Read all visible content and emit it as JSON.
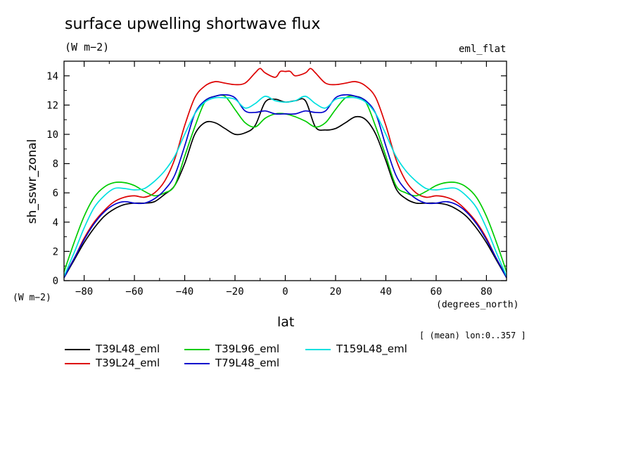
{
  "chart_data": {
    "type": "line",
    "title": "surface upwelling shortwave flux",
    "units": "(W m−2)",
    "subtitle": "eml_flat",
    "xlabel": "lat",
    "ylabel": "sh_sswr_zonal",
    "x_units": "(degrees_north)",
    "y_units": "(W m−2)",
    "annotation": "[ (mean) lon:0..357 ]",
    "xlim": [
      -88,
      88
    ],
    "ylim": [
      0,
      15
    ],
    "x_ticks": [
      -80,
      -60,
      -40,
      -20,
      0,
      20,
      40,
      60,
      80
    ],
    "x_tick_labels": [
      "−80",
      "−60",
      "−40",
      "−20",
      "0",
      "20",
      "40",
      "60",
      "80"
    ],
    "y_ticks": [
      0,
      2,
      4,
      6,
      8,
      10,
      12,
      14
    ],
    "y_tick_labels": [
      "0",
      "2",
      "4",
      "6",
      "8",
      "10",
      "12",
      "14"
    ],
    "grid": false,
    "legend_position": "bottom",
    "series": [
      {
        "name": "T39L48_eml",
        "color": "#000000",
        "x": [
          -88,
          -84,
          -80,
          -76,
          -72,
          -68,
          -64,
          -60,
          -56,
          -52,
          -48,
          -44,
          -40,
          -36,
          -32,
          -28,
          -24,
          -20,
          -16,
          -12,
          -8,
          -4,
          0,
          4,
          8,
          12,
          16,
          20,
          24,
          28,
          32,
          36,
          40,
          44,
          48,
          52,
          56,
          60,
          64,
          68,
          72,
          76,
          80,
          84,
          88
        ],
        "y": [
          0.2,
          1.4,
          2.6,
          3.6,
          4.4,
          4.9,
          5.2,
          5.3,
          5.3,
          5.4,
          5.9,
          6.5,
          8.0,
          10.0,
          10.8,
          10.8,
          10.4,
          10.0,
          10.1,
          10.6,
          12.2,
          12.4,
          12.2,
          12.3,
          12.3,
          10.5,
          10.3,
          10.4,
          10.8,
          11.2,
          11.0,
          10.0,
          8.2,
          6.3,
          5.6,
          5.3,
          5.3,
          5.3,
          5.2,
          4.9,
          4.4,
          3.6,
          2.6,
          1.4,
          0.2
        ]
      },
      {
        "name": "T39L24_eml",
        "color": "#dd0000",
        "x": [
          -88,
          -84,
          -80,
          -76,
          -72,
          -68,
          -64,
          -60,
          -56,
          -52,
          -48,
          -44,
          -40,
          -36,
          -32,
          -28,
          -24,
          -20,
          -16,
          -12,
          -10,
          -8,
          -4,
          -2,
          0,
          2,
          4,
          8,
          10,
          12,
          16,
          20,
          24,
          28,
          32,
          36,
          40,
          44,
          48,
          52,
          56,
          60,
          64,
          68,
          72,
          76,
          80,
          84,
          88
        ],
        "y": [
          0.3,
          1.5,
          2.9,
          4.0,
          4.8,
          5.4,
          5.7,
          5.8,
          5.7,
          6.0,
          6.8,
          8.3,
          10.6,
          12.5,
          13.3,
          13.6,
          13.5,
          13.4,
          13.5,
          14.2,
          14.5,
          14.2,
          13.9,
          14.3,
          14.3,
          14.3,
          14.0,
          14.2,
          14.5,
          14.2,
          13.5,
          13.4,
          13.5,
          13.6,
          13.3,
          12.5,
          10.6,
          8.3,
          6.8,
          6.0,
          5.7,
          5.8,
          5.7,
          5.4,
          4.8,
          4.0,
          2.9,
          1.5,
          0.3
        ]
      },
      {
        "name": "T39L96_eml",
        "color": "#00cc00",
        "x": [
          -88,
          -84,
          -80,
          -76,
          -72,
          -68,
          -64,
          -60,
          -56,
          -52,
          -48,
          -44,
          -40,
          -36,
          -32,
          -28,
          -24,
          -20,
          -16,
          -12,
          -8,
          -4,
          0,
          4,
          8,
          12,
          16,
          20,
          24,
          28,
          32,
          36,
          40,
          44,
          48,
          52,
          56,
          60,
          64,
          68,
          72,
          76,
          80,
          84,
          88
        ],
        "y": [
          0.6,
          2.6,
          4.4,
          5.7,
          6.4,
          6.7,
          6.7,
          6.5,
          6.1,
          5.8,
          6.0,
          6.5,
          8.5,
          10.5,
          12.2,
          12.6,
          12.6,
          11.7,
          10.8,
          10.5,
          11.1,
          11.4,
          11.4,
          11.2,
          10.9,
          10.5,
          10.8,
          11.7,
          12.5,
          12.6,
          12.2,
          10.5,
          8.5,
          6.5,
          6.0,
          5.8,
          6.1,
          6.5,
          6.7,
          6.7,
          6.4,
          5.7,
          4.4,
          2.6,
          0.6
        ]
      },
      {
        "name": "T79L48_eml",
        "color": "#0000cc",
        "x": [
          -88,
          -84,
          -80,
          -76,
          -72,
          -68,
          -64,
          -60,
          -56,
          -52,
          -48,
          -44,
          -40,
          -36,
          -32,
          -28,
          -24,
          -20,
          -16,
          -12,
          -8,
          -4,
          0,
          4,
          8,
          12,
          16,
          20,
          24,
          28,
          32,
          36,
          40,
          44,
          48,
          52,
          56,
          60,
          64,
          68,
          72,
          76,
          80,
          84,
          88
        ],
        "y": [
          0.2,
          1.5,
          2.8,
          3.9,
          4.7,
          5.2,
          5.4,
          5.3,
          5.3,
          5.6,
          6.2,
          7.2,
          9.2,
          11.4,
          12.3,
          12.6,
          12.7,
          12.5,
          11.6,
          11.5,
          11.6,
          11.4,
          11.4,
          11.4,
          11.6,
          11.5,
          11.6,
          12.5,
          12.7,
          12.6,
          12.3,
          11.4,
          9.2,
          7.2,
          6.2,
          5.6,
          5.3,
          5.3,
          5.4,
          5.2,
          4.7,
          3.9,
          2.8,
          1.5,
          0.2
        ]
      },
      {
        "name": "T159L48_eml",
        "color": "#00e0e0",
        "x": [
          -88,
          -84,
          -80,
          -76,
          -72,
          -68,
          -64,
          -60,
          -56,
          -52,
          -48,
          -44,
          -40,
          -36,
          -32,
          -28,
          -24,
          -20,
          -16,
          -12,
          -8,
          -4,
          0,
          4,
          8,
          12,
          16,
          20,
          24,
          28,
          32,
          36,
          40,
          44,
          48,
          52,
          56,
          60,
          64,
          68,
          72,
          76,
          80,
          84,
          88
        ],
        "y": [
          0.3,
          1.9,
          3.6,
          5.0,
          5.8,
          6.3,
          6.3,
          6.2,
          6.3,
          6.8,
          7.5,
          8.5,
          10.0,
          11.4,
          12.2,
          12.5,
          12.5,
          12.4,
          11.8,
          12.1,
          12.6,
          12.3,
          12.2,
          12.3,
          12.6,
          12.1,
          11.8,
          12.4,
          12.5,
          12.5,
          12.2,
          11.4,
          10.0,
          8.5,
          7.5,
          6.8,
          6.3,
          6.2,
          6.3,
          6.3,
          5.8,
          5.0,
          3.6,
          1.9,
          0.3
        ]
      }
    ]
  }
}
